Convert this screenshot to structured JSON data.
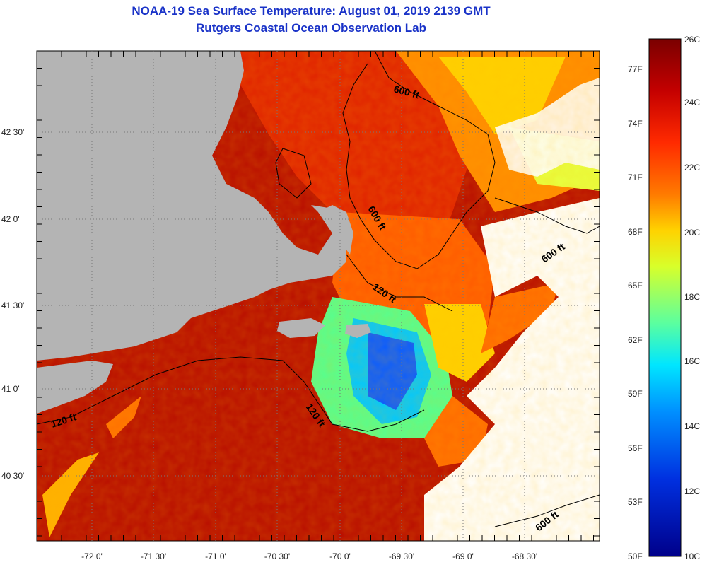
{
  "title": "NOAA-19 Sea Surface Temperature:  August 01, 2019 2139 GMT",
  "subtitle": "Rutgers Coastal Ocean Observation Lab",
  "latitude_labels": [
    "42 30'",
    "42 0'",
    "41 30'",
    "41 0'",
    "40 30'"
  ],
  "longitude_labels": [
    "-72 0'",
    "-71 30'",
    "-71 0'",
    "-70 30'",
    "-70 0'",
    "-69 30'",
    "-69 0'",
    "-68 30'"
  ],
  "contour_labels": [
    "600 ft",
    "600 ft",
    "600 ft",
    "120 ft",
    "120 ft",
    "120 ft",
    "600 ft"
  ],
  "colorbar": {
    "fahrenheit_labels": [
      "77F",
      "74F",
      "71F",
      "68F",
      "65F",
      "62F",
      "59F",
      "56F",
      "53F",
      "50F"
    ],
    "celsius_labels": [
      "26C",
      "24C",
      "22C",
      "20C",
      "18C",
      "16C",
      "14C",
      "12C",
      "10C"
    ],
    "colors": [
      "#7a0000",
      "#c40000",
      "#ff2a00",
      "#ff7a00",
      "#ffd200",
      "#d8ff2a",
      "#5affa0",
      "#00e6ff",
      "#0090ff",
      "#0030e0",
      "#00008a"
    ]
  },
  "legend_colors": {
    "land": "#b4b4b4",
    "cloud": "#ffffff",
    "warm_water": "#d61a00",
    "cold_water": "#0a7cff"
  }
}
